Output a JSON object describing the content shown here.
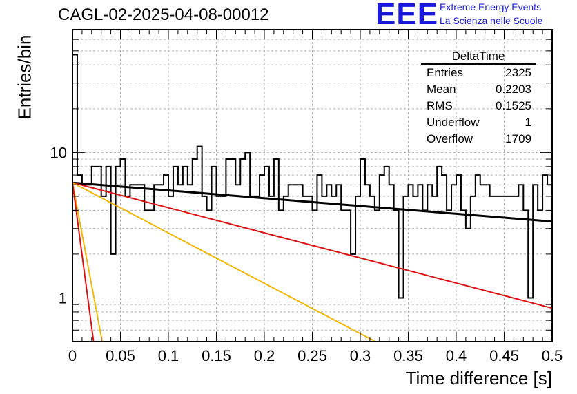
{
  "header": {
    "title": "CAGL-02-2025-04-08-00012",
    "logo_text": "EEE",
    "logo_line1": "Extreme Energy Events",
    "logo_line2": "La Scienza nelle Scuole"
  },
  "stats": {
    "title": "DeltaTime",
    "rows": [
      {
        "label": "Entries",
        "value": "2325"
      },
      {
        "label": "Mean",
        "value": "0.2203"
      },
      {
        "label": "RMS",
        "value": "0.1525"
      },
      {
        "label": "Underflow",
        "value": "1"
      },
      {
        "label": "Overflow",
        "value": "1709"
      }
    ]
  },
  "colors": {
    "histogram": "#000000",
    "fit_black": "#000000",
    "fit_red": "#dd1111",
    "fit_yellow": "#f2b705",
    "fit_red_steep": "#dd1111"
  },
  "chart_data": {
    "type": "histogram",
    "title": "CAGL-02-2025-04-08-00012",
    "xlabel": "Time difference [s]",
    "ylabel": "Entries/bin",
    "xlim": [
      0,
      0.5
    ],
    "ylim": [
      0.5,
      70
    ],
    "yscale": "log",
    "grid": true,
    "x_ticks": [
      "0",
      "0.05",
      "0.1",
      "0.15",
      "0.2",
      "0.25",
      "0.3",
      "0.35",
      "0.4",
      "0.45",
      "0.5"
    ],
    "y_ticks": [
      "1",
      "10"
    ],
    "bin_width": 0.005,
    "bin_contents": [
      47,
      7,
      6,
      6,
      8,
      8,
      5,
      8,
      2,
      8,
      9,
      5,
      6,
      6,
      6,
      4,
      4,
      6,
      6,
      7,
      5,
      8,
      6,
      8,
      6,
      9,
      11,
      5,
      4,
      8,
      5,
      5,
      9,
      9,
      6,
      9,
      10,
      5,
      5,
      7,
      8,
      5,
      9,
      4,
      5,
      6,
      6,
      6,
      5,
      5,
      4,
      7,
      5,
      6,
      5,
      6,
      4,
      4,
      2,
      5,
      9,
      6,
      5,
      4,
      7,
      8,
      6,
      4,
      1,
      5,
      6,
      5,
      6,
      4,
      6,
      5,
      8,
      7,
      4,
      6,
      7,
      4,
      3,
      5,
      7,
      6,
      6,
      5,
      5,
      5,
      5,
      5,
      5,
      6,
      4,
      1,
      6,
      4,
      7,
      6
    ],
    "fit_lines": [
      {
        "color": "black",
        "points": [
          [
            0,
            6.2
          ],
          [
            0.5,
            3.35
          ]
        ]
      },
      {
        "color": "red",
        "points": [
          [
            0,
            6.2
          ],
          [
            0.5,
            0.85
          ]
        ]
      },
      {
        "color": "yellow",
        "points": [
          [
            0,
            6.2
          ],
          [
            0.316,
            0.5
          ]
        ]
      },
      {
        "color": "yellow",
        "points": [
          [
            0,
            6.2
          ],
          [
            0.031,
            0.5
          ]
        ]
      },
      {
        "color": "red",
        "points": [
          [
            0,
            6.2
          ],
          [
            0.022,
            0.5
          ]
        ]
      }
    ]
  }
}
